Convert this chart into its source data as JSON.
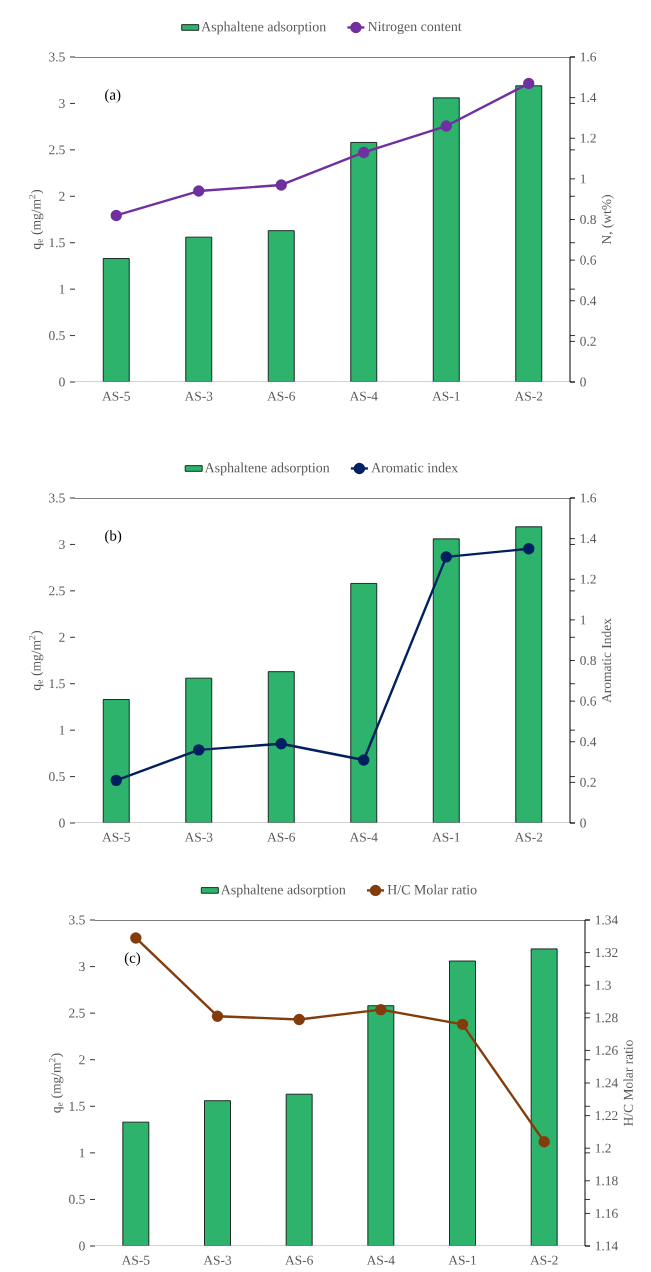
{
  "chart_data": [
    {
      "type": "bar",
      "categories": [
        "AS-5",
        "AS-3",
        "AS-6",
        "AS-4",
        "AS-1",
        "AS-2"
      ],
      "ylabel": "q$_{e}$ (mg/m$^{2}$)",
      "y2label": "N, (wt%)",
      "ylim": [
        0,
        3.5
      ],
      "yticks": [
        0,
        0.5,
        1,
        1.5,
        2,
        2.5,
        3,
        3.5
      ],
      "y2lim": [
        0,
        1.6
      ],
      "y2ticks": [
        0,
        0.2,
        0.4,
        0.6,
        0.8,
        1,
        1.2,
        1.4,
        1.6
      ],
      "legend": "top",
      "marker": "circle",
      "annotations": [
        "(a)"
      ],
      "series": [
        {
          "name": "Asphaltene adsorption",
          "color": "#2db36b",
          "values": [
            1.33,
            1.56,
            1.63,
            2.58,
            3.06,
            3.19
          ]
        },
        {
          "name": "Nitrogen content",
          "type": "line",
          "axis": "y2",
          "color": "#7030a0",
          "values": [
            0.82,
            0.94,
            0.97,
            1.13,
            1.26,
            1.47
          ]
        }
      ]
    },
    {
      "type": "bar",
      "categories": [
        "AS-5",
        "AS-3",
        "AS-6",
        "AS-4",
        "AS-1",
        "AS-2"
      ],
      "ylabel": "q$_{e}$ (mg/m$^{2}$)",
      "y2label": "Aromatic Index",
      "ylim": [
        0,
        3.5
      ],
      "yticks": [
        0,
        0.5,
        1,
        1.5,
        2,
        2.5,
        3,
        3.5
      ],
      "y2lim": [
        0,
        1.6
      ],
      "y2ticks": [
        0,
        0.2,
        0.4,
        0.6,
        0.8,
        1,
        1.2,
        1.4,
        1.6
      ],
      "legend": "top",
      "marker": "circle",
      "annotations": [
        "(b)"
      ],
      "series": [
        {
          "name": "Asphaltene adsorption",
          "color": "#2db36b",
          "values": [
            1.33,
            1.56,
            1.63,
            2.58,
            3.06,
            3.19
          ]
        },
        {
          "name": "Aromatic index",
          "type": "line",
          "axis": "y2",
          "color": "#002060",
          "values": [
            0.21,
            0.36,
            0.39,
            0.31,
            1.31,
            1.35
          ]
        }
      ]
    },
    {
      "type": "bar",
      "categories": [
        "AS-5",
        "AS-3",
        "AS-6",
        "AS-4",
        "AS-1",
        "AS-2"
      ],
      "ylabel": "q$_{e}$ (mg/m$^{2}$)",
      "y2label": "H/C Molar ratio",
      "ylim": [
        0,
        3.5
      ],
      "yticks": [
        0,
        0.5,
        1,
        1.5,
        2,
        2.5,
        3,
        3.5
      ],
      "y2lim": [
        1.14,
        1.34
      ],
      "y2ticks": [
        1.14,
        1.16,
        1.18,
        1.2,
        1.22,
        1.24,
        1.26,
        1.28,
        1.3,
        1.32,
        1.34
      ],
      "legend": "top",
      "marker": "circle",
      "annotations": [
        "(c)"
      ],
      "series": [
        {
          "name": "Asphaltene adsorption",
          "color": "#2db36b",
          "values": [
            1.33,
            1.56,
            1.63,
            2.58,
            3.06,
            3.19
          ]
        },
        {
          "name": "H/C Molar ratio",
          "type": "line",
          "axis": "y2",
          "color": "#843c0c",
          "values": [
            1.329,
            1.281,
            1.279,
            1.285,
            1.276,
            1.204
          ]
        }
      ]
    }
  ]
}
